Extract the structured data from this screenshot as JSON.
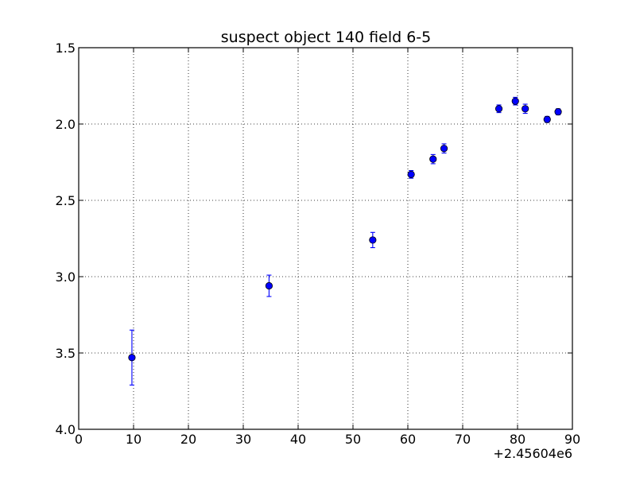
{
  "chart_data": {
    "type": "scatter",
    "title": "suspect object 140 field 6-5",
    "xlabel": "",
    "ylabel": "",
    "x_offset_label": "+2.45604e6",
    "xlim": [
      0,
      90
    ],
    "ylim": [
      4.0,
      1.5
    ],
    "y_inverted": true,
    "grid": true,
    "x_ticks": [
      0,
      10,
      20,
      30,
      40,
      50,
      60,
      70,
      80,
      90
    ],
    "x_tick_labels": [
      "0",
      "10",
      "20",
      "30",
      "40",
      "50",
      "60",
      "70",
      "80",
      "90"
    ],
    "y_ticks": [
      1.5,
      2.0,
      2.5,
      3.0,
      3.5,
      4.0
    ],
    "y_tick_labels": [
      "1.5",
      "2.0",
      "2.5",
      "3.0",
      "3.5",
      "4.0"
    ],
    "marker_color": "#0000ff",
    "series": [
      {
        "x": [
          9.7,
          34.7,
          53.6,
          60.6,
          64.6,
          66.6,
          76.6,
          79.6,
          81.4,
          85.4,
          87.4
        ],
        "y": [
          3.53,
          3.06,
          2.76,
          2.33,
          2.23,
          2.16,
          1.9,
          1.85,
          1.9,
          1.97,
          1.92
        ],
        "yerr": [
          0.18,
          0.07,
          0.05,
          0.025,
          0.03,
          0.03,
          0.025,
          0.025,
          0.03,
          0.02,
          0.02
        ]
      }
    ]
  }
}
